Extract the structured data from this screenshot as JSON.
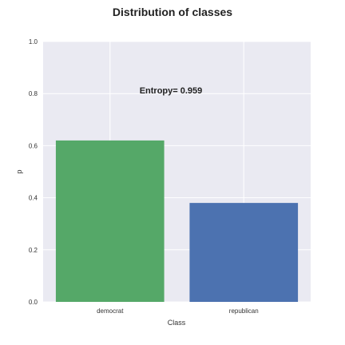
{
  "chart_data": {
    "type": "bar",
    "title": "Distribution of classes",
    "xlabel": "Class",
    "ylabel": "p",
    "categories": [
      "democrat",
      "republican"
    ],
    "values": [
      0.62,
      0.38
    ],
    "ylim": [
      0,
      1.0
    ],
    "yticks": [
      "0.0",
      "0.2",
      "0.4",
      "0.6",
      "0.8",
      "1.0"
    ],
    "ytick_values": [
      0.0,
      0.2,
      0.4,
      0.6,
      0.8,
      1.0
    ],
    "annotation": "Entropy= 0.959",
    "grid": true,
    "style": {
      "background": "#EAEAF2",
      "grid_color": "#FFFFFF",
      "bar_colors": [
        "#55A868",
        "#4C72B0"
      ]
    }
  }
}
